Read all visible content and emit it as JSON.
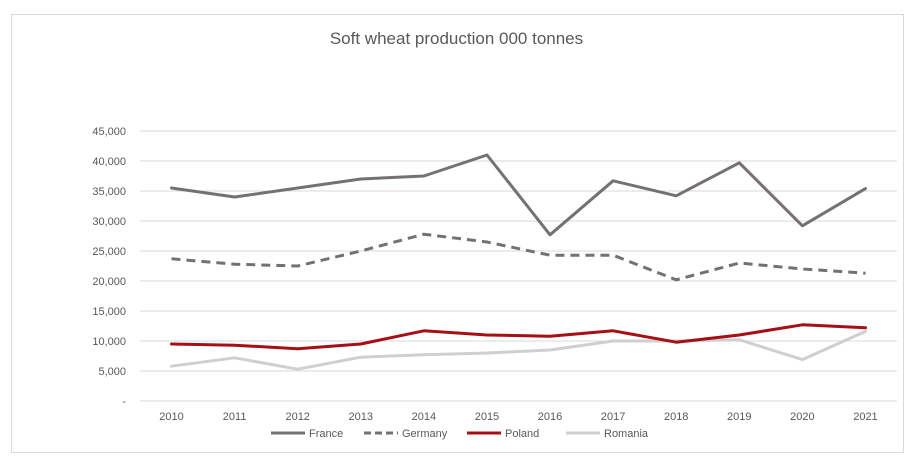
{
  "chart_data": {
    "type": "line",
    "title": "Soft wheat production 000 tonnes",
    "xlabel": "",
    "ylabel": "",
    "categories": [
      "2010",
      "2011",
      "2012",
      "2013",
      "2014",
      "2015",
      "2016",
      "2017",
      "2018",
      "2019",
      "2020",
      "2021"
    ],
    "ylim": [
      0,
      45000
    ],
    "yticks": [
      0,
      5000,
      10000,
      15000,
      20000,
      25000,
      30000,
      35000,
      40000,
      45000
    ],
    "ytick_labels": [
      "-",
      "5,000",
      "10,000",
      "15,000",
      "20,000",
      "25,000",
      "30,000",
      "35,000",
      "40,000",
      "45,000"
    ],
    "grid": true,
    "legend_position": "bottom",
    "series": [
      {
        "name": "France",
        "color": "#767171",
        "style": "solid",
        "values": [
          35500,
          34000,
          35500,
          37000,
          37500,
          41000,
          27700,
          36700,
          34200,
          39700,
          29200,
          35400
        ]
      },
      {
        "name": "Germany",
        "color": "#767171",
        "style": "dashed",
        "values": [
          23700,
          22800,
          22500,
          25000,
          27800,
          26500,
          24300,
          24300,
          20200,
          23000,
          22000,
          21300
        ]
      },
      {
        "name": "Poland",
        "color": "#a50f15",
        "style": "solid",
        "values": [
          9500,
          9300,
          8700,
          9500,
          11700,
          11000,
          10800,
          11700,
          9800,
          11000,
          12700,
          12200
        ]
      },
      {
        "name": "Romania",
        "color": "#cfcfcf",
        "style": "solid",
        "values": [
          5800,
          7200,
          5300,
          7300,
          7700,
          8000,
          8500,
          10000,
          10000,
          10200,
          6900,
          11600
        ]
      }
    ]
  }
}
